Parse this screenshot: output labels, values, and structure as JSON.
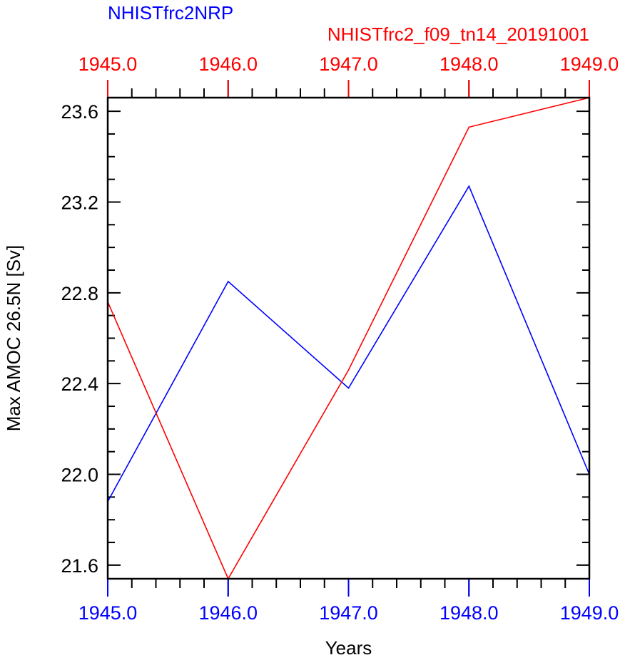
{
  "chart_data": {
    "type": "line",
    "series": [
      {
        "name": "NHISTfrc2NRP",
        "color": "#0000ff",
        "x": [
          1945.0,
          1946.0,
          1947.0,
          1948.0,
          1949.0
        ],
        "values": [
          21.88,
          22.85,
          22.38,
          23.27,
          22.0
        ]
      },
      {
        "name": "NHISTfrc2_f09_tn14_20191001",
        "color": "#ff0000",
        "x": [
          1945.0,
          1946.0,
          1947.0,
          1948.0,
          1949.0
        ],
        "values": [
          22.76,
          21.54,
          22.46,
          23.53,
          23.66
        ]
      }
    ],
    "xlabel": "Years",
    "ylabel": "Max AMOC 26.5N [Sv]",
    "xlim": [
      1945.0,
      1949.0
    ],
    "ylim": [
      21.54,
      23.66
    ],
    "x_ticks": [
      "1945.0",
      "1946.0",
      "1947.0",
      "1948.0",
      "1949.0"
    ],
    "y_ticks": [
      "21.6",
      "22.0",
      "22.4",
      "22.8",
      "23.2",
      "23.6"
    ],
    "bottom_axis_color": "#0000ff",
    "top_axis_color": "#ff0000",
    "grid": false
  }
}
